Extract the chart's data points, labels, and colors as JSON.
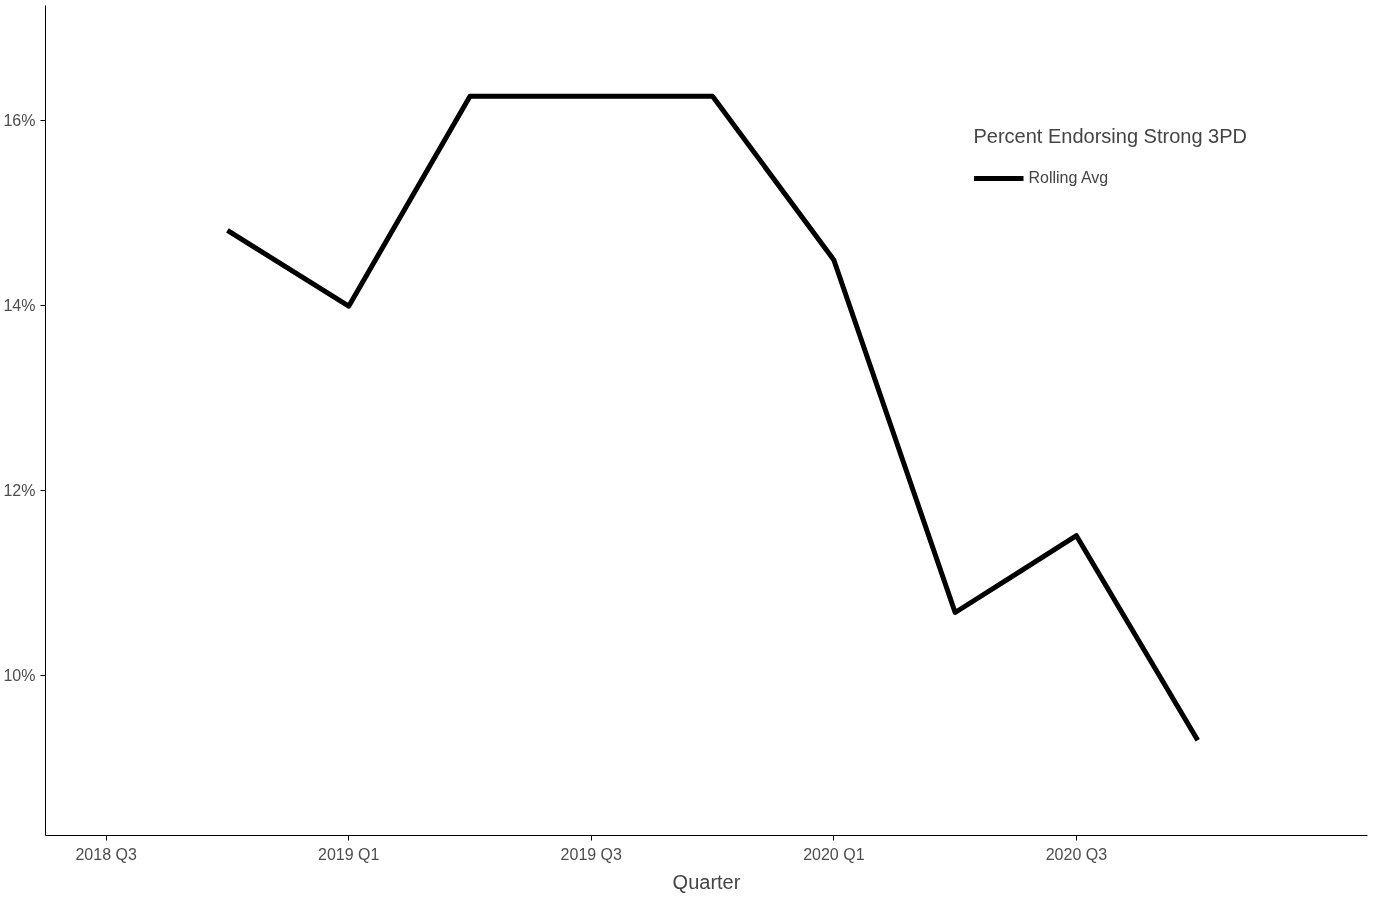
{
  "chart_data": {
    "type": "line",
    "xlabel": "Quarter",
    "legend_title": "Percent Endorsing Strong 3PD",
    "categories": [
      "2018 Q3",
      null,
      "2019 Q1",
      null,
      "2019 Q3",
      null,
      "2020 Q1",
      null,
      "2020 Q3",
      null
    ],
    "series": [
      {
        "name": "Rolling Avg",
        "color": "#000000",
        "values": [
          null,
          14.81,
          13.99,
          16.26,
          16.26,
          16.26,
          14.49,
          10.68,
          11.51,
          9.3
        ]
      }
    ],
    "ylim": [
      8.27,
      17.24
    ],
    "yticks": [
      {
        "value": 10,
        "label": "10%"
      },
      {
        "value": 12,
        "label": "12%"
      },
      {
        "value": 14,
        "label": "14%"
      },
      {
        "value": 16,
        "label": "16%"
      }
    ],
    "grid": false,
    "legend": "top right",
    "marker": "none",
    "line_style": "solid"
  }
}
